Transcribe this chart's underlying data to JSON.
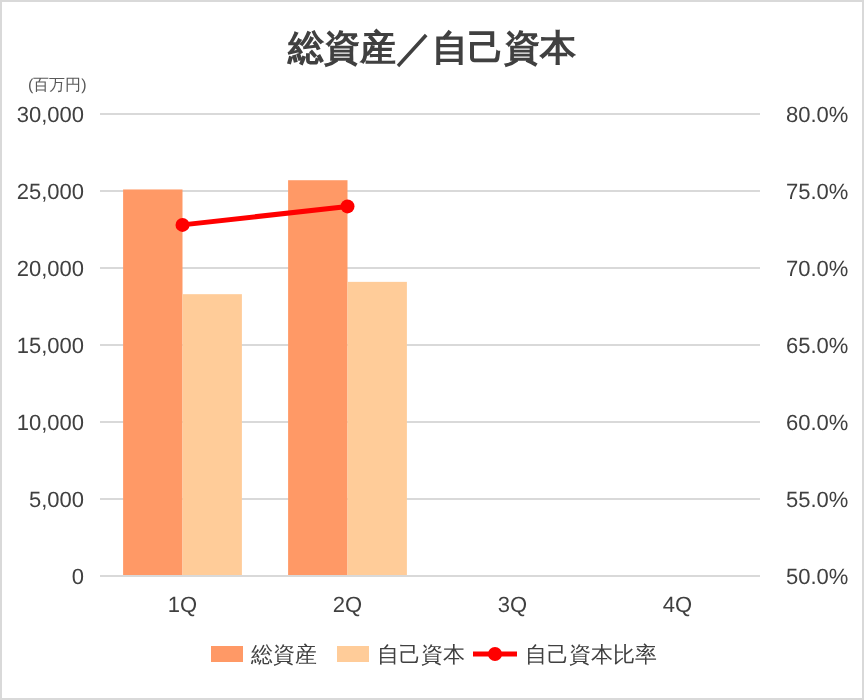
{
  "chart_data": {
    "type": "bar",
    "title": "総資産／自己資本",
    "annotations": [
      "(百万円)"
    ],
    "categories": [
      "1Q",
      "2Q",
      "3Q",
      "4Q"
    ],
    "series": [
      {
        "name": "総資産",
        "color": "#ff9966",
        "values": [
          25100,
          25700,
          null,
          null
        ]
      },
      {
        "name": "自己資本",
        "color": "#ffcc99",
        "values": [
          18300,
          19100,
          null,
          null
        ]
      },
      {
        "name": "自己資本比率",
        "color": "#ff0000",
        "type": "line",
        "axis": "y2",
        "marker": "circle",
        "values": [
          72.8,
          74.0,
          null,
          null
        ]
      }
    ],
    "ylim": [
      0,
      30000
    ],
    "yticks": [
      {
        "value": 0,
        "label": "0"
      },
      {
        "value": 5000,
        "label": "5,000"
      },
      {
        "value": 10000,
        "label": "10,000"
      },
      {
        "value": 15000,
        "label": "15,000"
      },
      {
        "value": 20000,
        "label": "20,000"
      },
      {
        "value": 25000,
        "label": "25,000"
      },
      {
        "value": 30000,
        "label": "30,000"
      }
    ],
    "y2lim": [
      50,
      80
    ],
    "y2ticks": [
      {
        "value": 50,
        "label": "50.0%"
      },
      {
        "value": 55,
        "label": "55.0%"
      },
      {
        "value": 60,
        "label": "60.0%"
      },
      {
        "value": 65,
        "label": "65.0%"
      },
      {
        "value": 70,
        "label": "70.0%"
      },
      {
        "value": 75,
        "label": "75.0%"
      },
      {
        "value": 80,
        "label": "80.0%"
      }
    ],
    "grid": "y",
    "legend": "bottom"
  }
}
